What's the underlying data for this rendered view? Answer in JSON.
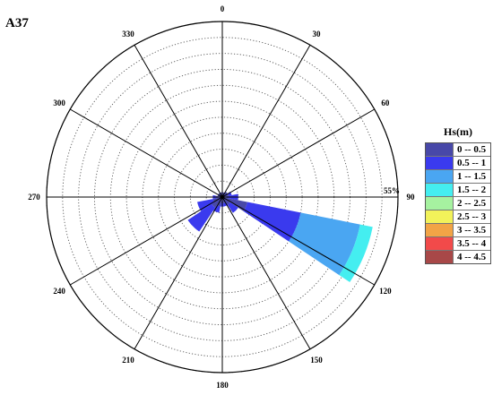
{
  "panel_label": "A37",
  "chart_data": {
    "type": "polar-bar",
    "title": "",
    "radial_max_percent": 55,
    "radial_max_label": "55%",
    "radial_rings": 11,
    "angle_ticks": [
      "0",
      "30",
      "60",
      "90",
      "120",
      "150",
      "180",
      "210",
      "240",
      "270",
      "300",
      "330"
    ],
    "sector_width_deg": 22.5,
    "legend_title": "Hs(m)",
    "bins": [
      {
        "label": "0 -- 0.5",
        "color": "#4848a8"
      },
      {
        "label": "0.5 -- 1",
        "color": "#3a3aee"
      },
      {
        "label": "1 -- 1.5",
        "color": "#4aa6f2"
      },
      {
        "label": "1.5 -- 2",
        "color": "#44eef0"
      },
      {
        "label": "2 -- 2.5",
        "color": "#a6f2a0"
      },
      {
        "label": "2.5 -- 3",
        "color": "#f2f25a"
      },
      {
        "label": "3 -- 3.5",
        "color": "#f2a446"
      },
      {
        "label": "3.5 -- 4",
        "color": "#f24a4a"
      },
      {
        "label": "4 -- 4.5",
        "color": "#a84848"
      }
    ],
    "sectors": [
      {
        "direction_deg": 0,
        "cumulative_percent": [
          1.5,
          1.5,
          1.5,
          1.5
        ]
      },
      {
        "direction_deg": 22.5,
        "cumulative_percent": [
          1.5,
          1.5,
          1.5,
          1.5
        ]
      },
      {
        "direction_deg": 45,
        "cumulative_percent": [
          2,
          2,
          2,
          2
        ]
      },
      {
        "direction_deg": 67.5,
        "cumulative_percent": [
          2,
          3,
          3,
          3
        ]
      },
      {
        "direction_deg": 90,
        "cumulative_percent": [
          2,
          5,
          5,
          5
        ]
      },
      {
        "direction_deg": 112.5,
        "cumulative_percent": [
          8,
          25,
          44,
          48
        ]
      },
      {
        "direction_deg": 135,
        "cumulative_percent": [
          3,
          6,
          6,
          6
        ]
      },
      {
        "direction_deg": 157.5,
        "cumulative_percent": [
          2,
          3,
          3,
          3
        ]
      },
      {
        "direction_deg": 180,
        "cumulative_percent": [
          2,
          3,
          3,
          3
        ]
      },
      {
        "direction_deg": 202.5,
        "cumulative_percent": [
          3,
          5,
          5,
          5
        ]
      },
      {
        "direction_deg": 225,
        "cumulative_percent": [
          4,
          13,
          13,
          13
        ]
      },
      {
        "direction_deg": 247.5,
        "cumulative_percent": [
          3,
          8,
          8,
          8
        ]
      },
      {
        "direction_deg": 270,
        "cumulative_percent": [
          2,
          3,
          3,
          3
        ]
      },
      {
        "direction_deg": 292.5,
        "cumulative_percent": [
          1.5,
          1.5,
          1.5,
          1.5
        ]
      },
      {
        "direction_deg": 315,
        "cumulative_percent": [
          1.5,
          1.5,
          1.5,
          1.5
        ]
      },
      {
        "direction_deg": 337.5,
        "cumulative_percent": [
          1.5,
          1.5,
          1.5,
          1.5
        ]
      }
    ]
  }
}
